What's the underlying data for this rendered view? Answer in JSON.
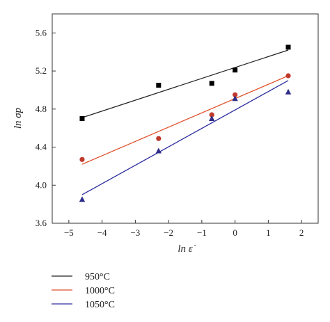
{
  "chart_data": {
    "type": "scatter",
    "title": "",
    "xlabel": "ln ε̇",
    "ylabel": "ln σp",
    "xlim": [
      -5.5,
      2.5
    ],
    "ylim": [
      3.6,
      5.8
    ],
    "x_ticks": [
      -5,
      -4,
      -3,
      -2,
      -1,
      0,
      1,
      2
    ],
    "y_ticks": [
      3.6,
      4.0,
      4.4,
      4.8,
      5.2,
      5.6
    ],
    "x_tick_labels": [
      "−5",
      "−4",
      "−3",
      "−2",
      "−1",
      "0",
      "1",
      "2"
    ],
    "y_tick_labels": [
      "3.6",
      "4.0",
      "4.4",
      "4.8",
      "5.2",
      "5.6"
    ],
    "grid": false,
    "legend_position": "bottom-left, below plot",
    "series": [
      {
        "name": "950°C",
        "color": "#000000",
        "line_color": "#222222",
        "marker": "square",
        "x": [
          -4.6,
          -2.3,
          -0.7,
          0.0,
          1.6
        ],
        "y": [
          4.7,
          5.05,
          5.07,
          5.21,
          5.45
        ],
        "fit": {
          "x": [
            -4.6,
            1.6
          ],
          "y": [
            4.71,
            5.42
          ]
        }
      },
      {
        "name": "1000°C",
        "color": "#c0392b",
        "line_color": "#e0502a",
        "marker": "circle",
        "x": [
          -4.6,
          -2.3,
          -0.7,
          0.0,
          1.6
        ],
        "y": [
          4.27,
          4.49,
          4.74,
          4.95,
          5.15
        ],
        "fit": {
          "x": [
            -4.6,
            1.6
          ],
          "y": [
            4.22,
            5.15
          ]
        }
      },
      {
        "name": "1050°C",
        "color": "#2e2e8a",
        "line_color": "#2c2c9e",
        "marker": "triangle",
        "x": [
          -4.6,
          -2.3,
          -0.7,
          0.0,
          1.6
        ],
        "y": [
          3.85,
          4.36,
          4.7,
          4.91,
          4.98
        ],
        "fit": {
          "x": [
            -4.6,
            1.6
          ],
          "y": [
            3.9,
            5.1
          ]
        }
      }
    ]
  }
}
